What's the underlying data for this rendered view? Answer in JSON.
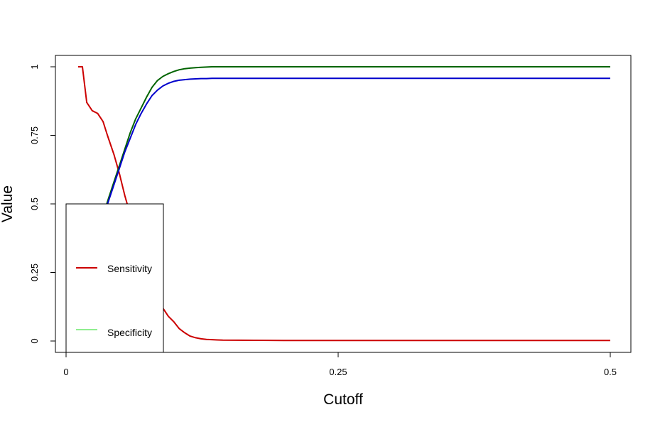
{
  "chart_data": {
    "type": "line",
    "xlabel": "Cutoff",
    "ylabel": "Value",
    "xlim": [
      0,
      0.5
    ],
    "ylim": [
      0,
      1
    ],
    "x_ticks": [
      0,
      0.25,
      0.5
    ],
    "x_tick_labels": [
      "0",
      "0.25",
      "0.5"
    ],
    "y_ticks": [
      0,
      0.25,
      0.5,
      0.75,
      1
    ],
    "y_tick_labels": [
      "0",
      "0.25",
      "0.5",
      "0.75",
      "1"
    ],
    "grid": false,
    "legend": {
      "placement": "left",
      "entries": [
        {
          "label": "Sensitivity",
          "color": "#cc0000"
        },
        {
          "label": "Specificity",
          "color": "#90ee90"
        }
      ]
    },
    "series": [
      {
        "color": "#cc0000",
        "x": [
          0.011,
          0.015,
          0.019,
          0.024,
          0.029,
          0.034,
          0.038,
          0.044,
          0.049,
          0.054,
          0.059,
          0.064,
          0.069,
          0.074,
          0.079,
          0.084,
          0.089,
          0.094,
          0.099,
          0.104,
          0.109,
          0.114,
          0.119,
          0.124,
          0.129,
          0.134,
          0.139,
          0.144,
          0.2,
          0.3,
          0.4,
          0.5
        ],
        "y": [
          1.0,
          1.0,
          0.87,
          0.84,
          0.83,
          0.8,
          0.75,
          0.68,
          0.61,
          0.53,
          0.46,
          0.38,
          0.31,
          0.25,
          0.19,
          0.15,
          0.12,
          0.09,
          0.07,
          0.045,
          0.03,
          0.018,
          0.012,
          0.008,
          0.006,
          0.005,
          0.004,
          0.003,
          0.002,
          0.002,
          0.002,
          0.002
        ]
      },
      {
        "color": "#006400",
        "x": [
          0.035,
          0.039,
          0.044,
          0.049,
          0.054,
          0.059,
          0.064,
          0.069,
          0.074,
          0.079,
          0.084,
          0.089,
          0.094,
          0.099,
          0.104,
          0.109,
          0.114,
          0.119,
          0.124,
          0.129,
          0.134,
          0.144,
          0.2,
          0.3,
          0.4,
          0.5
        ],
        "y": [
          0.47,
          0.52,
          0.58,
          0.64,
          0.7,
          0.76,
          0.81,
          0.85,
          0.89,
          0.925,
          0.95,
          0.965,
          0.975,
          0.983,
          0.989,
          0.993,
          0.995,
          0.997,
          0.998,
          0.999,
          1.0,
          1.0,
          1.0,
          1.0,
          1.0,
          1.0
        ]
      },
      {
        "color": "#0000cc",
        "x": [
          0.035,
          0.039,
          0.044,
          0.049,
          0.054,
          0.059,
          0.064,
          0.069,
          0.074,
          0.079,
          0.084,
          0.089,
          0.094,
          0.099,
          0.104,
          0.109,
          0.114,
          0.119,
          0.124,
          0.129,
          0.134,
          0.144,
          0.2,
          0.3,
          0.4,
          0.5
        ],
        "y": [
          0.46,
          0.51,
          0.57,
          0.63,
          0.69,
          0.74,
          0.79,
          0.83,
          0.865,
          0.895,
          0.915,
          0.93,
          0.94,
          0.947,
          0.951,
          0.953,
          0.955,
          0.956,
          0.957,
          0.957,
          0.958,
          0.958,
          0.958,
          0.958,
          0.958,
          0.958
        ]
      }
    ]
  }
}
